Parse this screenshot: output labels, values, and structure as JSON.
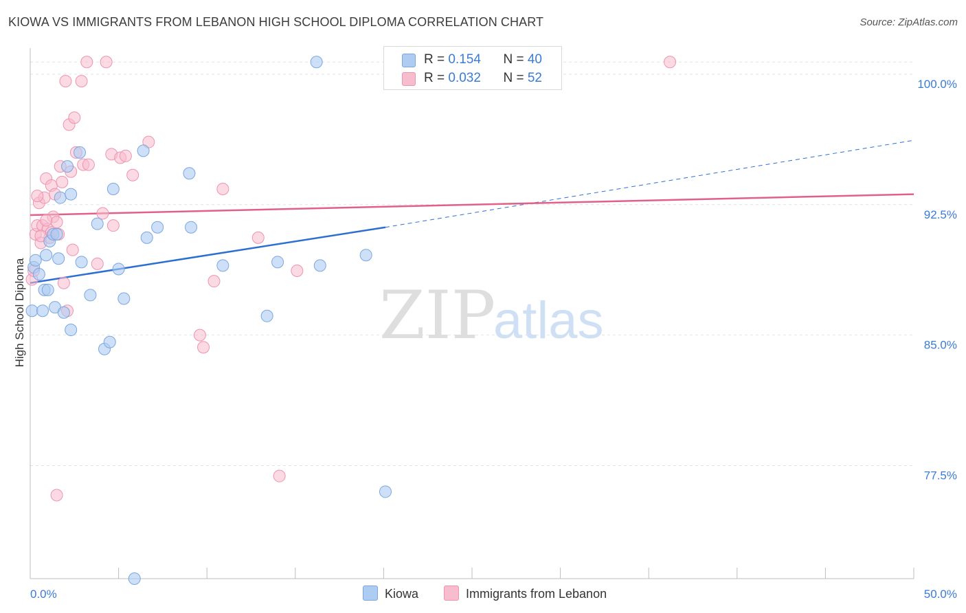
{
  "title": "KIOWA VS IMMIGRANTS FROM LEBANON HIGH SCHOOL DIPLOMA CORRELATION CHART",
  "source": "Source: ZipAtlas.com",
  "watermark": {
    "zip": "ZIP",
    "atlas": "atlas"
  },
  "legend": {
    "rows": [
      {
        "r_label": "R = ",
        "r_value": "0.154",
        "n_label": "N = ",
        "n_value": "40"
      },
      {
        "r_label": "R = ",
        "r_value": "0.032",
        "n_label": "N = ",
        "n_value": "52"
      }
    ]
  },
  "bottom_legend": {
    "kiowa": "Kiowa",
    "lebanon": "Immigrants from Lebanon"
  },
  "colors": {
    "kiowa_fill": "#aecbf2",
    "kiowa_stroke": "#7aa6e0",
    "kiowa_line": "#2d6fd0",
    "lebanon_fill": "#f7bccd",
    "lebanon_stroke": "#ee93b0",
    "lebanon_line": "#e0608a",
    "axis_label": "#3a7bd5",
    "grid": "#e2e2e2"
  },
  "chart_data": {
    "type": "scatter",
    "title": "KIOWA VS IMMIGRANTS FROM LEBANON HIGH SCHOOL DIPLOMA CORRELATION CHART",
    "xlabel": "",
    "ylabel": "High School Diploma",
    "xlim": [
      0,
      50
    ],
    "ylim": [
      71.0,
      101.5
    ],
    "x_tick_labels": [
      "0.0%",
      "50.0%"
    ],
    "y_ticks": [
      77.5,
      85.0,
      92.5,
      100.0
    ],
    "y_tick_labels": [
      "77.5%",
      "85.0%",
      "92.5%",
      "100.0%"
    ],
    "grid": true,
    "series": [
      {
        "name": "Kiowa",
        "points": [
          [
            0.1,
            86.4
          ],
          [
            0.2,
            88.9
          ],
          [
            0.3,
            89.3
          ],
          [
            0.5,
            88.5
          ],
          [
            0.7,
            86.4
          ],
          [
            0.8,
            87.6
          ],
          [
            0.9,
            89.6
          ],
          [
            1.0,
            87.6
          ],
          [
            1.1,
            90.4
          ],
          [
            1.3,
            90.8
          ],
          [
            1.4,
            86.6
          ],
          [
            1.5,
            90.8
          ],
          [
            1.6,
            89.4
          ],
          [
            1.7,
            92.9
          ],
          [
            1.9,
            86.3
          ],
          [
            2.1,
            94.7
          ],
          [
            2.3,
            93.1
          ],
          [
            2.3,
            85.3
          ],
          [
            2.8,
            95.5
          ],
          [
            2.9,
            89.2
          ],
          [
            3.4,
            87.3
          ],
          [
            3.8,
            91.4
          ],
          [
            4.2,
            84.2
          ],
          [
            4.5,
            84.6
          ],
          [
            4.7,
            93.4
          ],
          [
            5.0,
            88.8
          ],
          [
            5.3,
            87.1
          ],
          [
            5.9,
            71.0
          ],
          [
            6.4,
            95.6
          ],
          [
            6.6,
            90.6
          ],
          [
            7.2,
            91.2
          ],
          [
            9.0,
            94.3
          ],
          [
            9.1,
            91.2
          ],
          [
            10.9,
            89.0
          ],
          [
            13.4,
            86.1
          ],
          [
            14.0,
            89.2
          ],
          [
            16.2,
            100.7
          ],
          [
            16.4,
            89.0
          ],
          [
            19.0,
            89.6
          ],
          [
            20.1,
            76.0
          ]
        ],
        "trend": {
          "x0": 0,
          "y0": 88.0,
          "x1": 20.1,
          "y1": 91.2,
          "dash_to_x": 50,
          "dash_to_y": 96.2
        }
      },
      {
        "name": "Immigrants from Lebanon",
        "points": [
          [
            0.1,
            88.2
          ],
          [
            0.2,
            88.7
          ],
          [
            0.3,
            90.8
          ],
          [
            0.4,
            91.3
          ],
          [
            0.5,
            92.6
          ],
          [
            0.6,
            90.3
          ],
          [
            0.7,
            91.3
          ],
          [
            0.8,
            92.9
          ],
          [
            0.9,
            94.0
          ],
          [
            1.0,
            91.1
          ],
          [
            1.1,
            90.6
          ],
          [
            1.2,
            93.6
          ],
          [
            1.3,
            91.8
          ],
          [
            1.4,
            93.1
          ],
          [
            1.5,
            91.5
          ],
          [
            1.6,
            90.8
          ],
          [
            1.7,
            94.7
          ],
          [
            1.8,
            93.8
          ],
          [
            1.9,
            88.0
          ],
          [
            2.0,
            99.6
          ],
          [
            2.1,
            86.4
          ],
          [
            2.2,
            97.1
          ],
          [
            2.3,
            94.4
          ],
          [
            2.4,
            89.9
          ],
          [
            2.5,
            97.5
          ],
          [
            2.6,
            95.5
          ],
          [
            2.9,
            99.6
          ],
          [
            3.0,
            94.8
          ],
          [
            3.2,
            100.7
          ],
          [
            3.3,
            94.8
          ],
          [
            3.8,
            89.1
          ],
          [
            4.1,
            92.0
          ],
          [
            4.3,
            100.7
          ],
          [
            4.6,
            95.4
          ],
          [
            4.7,
            91.3
          ],
          [
            5.1,
            95.2
          ],
          [
            5.4,
            95.3
          ],
          [
            5.8,
            94.2
          ],
          [
            6.7,
            96.1
          ],
          [
            9.6,
            85.0
          ],
          [
            9.8,
            84.3
          ],
          [
            10.4,
            88.1
          ],
          [
            10.9,
            93.4
          ],
          [
            12.9,
            90.6
          ],
          [
            14.1,
            76.9
          ],
          [
            15.1,
            88.7
          ],
          [
            1.5,
            75.8
          ],
          [
            36.2,
            100.7
          ],
          [
            0.6,
            90.7
          ],
          [
            1.2,
            90.9
          ],
          [
            0.9,
            91.6
          ],
          [
            0.4,
            93.0
          ]
        ],
        "trend": {
          "x0": 0,
          "y0": 91.9,
          "x1": 50,
          "y1": 93.1
        }
      }
    ]
  }
}
